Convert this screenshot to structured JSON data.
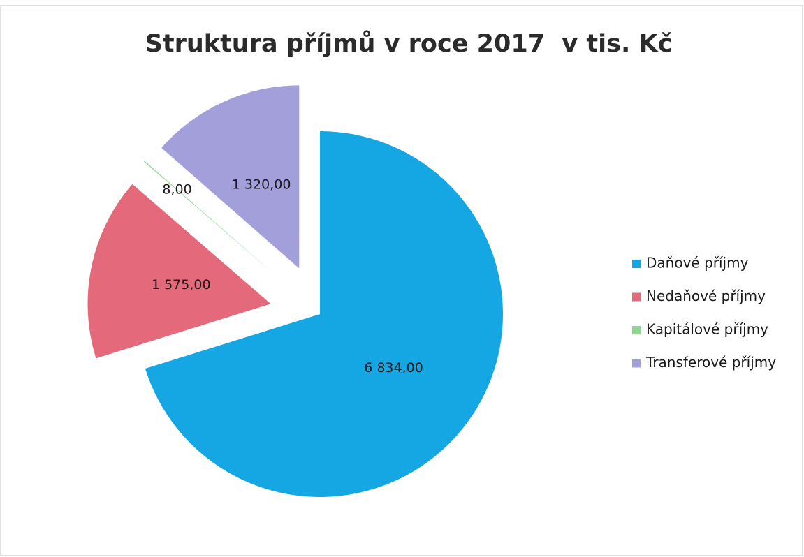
{
  "chart_data": {
    "type": "pie",
    "title": "Struktura příjmů v roce 2017  v tis. Kč",
    "categories": [
      "Daňové příjmy",
      "Nedaňové příjmy",
      "Kapitálové příjmy",
      "Transferové příjmy"
    ],
    "values": [
      6834,
      1575,
      8,
      1320
    ],
    "value_labels": [
      "6 834,00",
      "1 575,00",
      "8,00",
      "1 320,00"
    ],
    "colors": [
      "#15a6e4",
      "#e4697a",
      "#8fd48f",
      "#a39fdb"
    ],
    "legend": "right"
  }
}
